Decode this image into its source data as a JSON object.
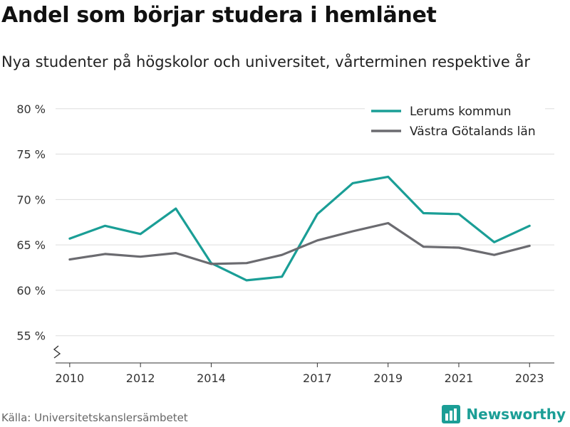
{
  "title": "Andel som börjar studera i hemlänet",
  "subtitle": "Nya studenter på högskolor och universitet, vårterminen respektive år",
  "source": "Källa: Universitetskanslersämbetet",
  "brand": "Newsworthy",
  "colors": {
    "lerum": "#1a9e96",
    "vg": "#6b6b70",
    "grid": "#dddddd",
    "axis": "#333333"
  },
  "chart_data": {
    "type": "line",
    "x": [
      2010,
      2011,
      2012,
      2013,
      2014,
      2015,
      2016,
      2017,
      2018,
      2019,
      2020,
      2021,
      2022,
      2023
    ],
    "x_ticks": [
      2010,
      2012,
      2014,
      2017,
      2019,
      2021,
      2023
    ],
    "y_ticks": [
      55,
      60,
      65,
      70,
      75,
      80
    ],
    "y_tick_labels": [
      "55 %",
      "60 %",
      "65 %",
      "70 %",
      "75 %",
      "80 %"
    ],
    "ylim": [
      52,
      81
    ],
    "xlim": [
      2009.6,
      2023.7
    ],
    "y_axis_break": true,
    "grid": true,
    "legend_position": "top-right",
    "series": [
      {
        "name": "Lerums kommun",
        "color": "#1a9e96",
        "values": [
          65.7,
          67.1,
          66.2,
          69.0,
          63.0,
          61.1,
          61.5,
          68.4,
          71.8,
          72.5,
          68.5,
          68.4,
          65.3,
          67.1
        ]
      },
      {
        "name": "Västra Götalands län",
        "color": "#6b6b70",
        "values": [
          63.4,
          64.0,
          63.7,
          64.1,
          62.9,
          63.0,
          63.9,
          65.5,
          66.5,
          67.4,
          64.8,
          64.7,
          63.9,
          64.9
        ]
      }
    ]
  }
}
